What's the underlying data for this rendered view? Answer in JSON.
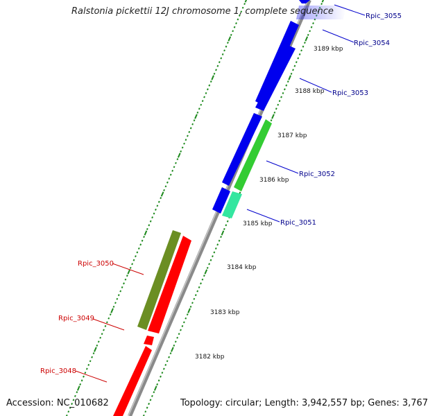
{
  "title": "Ralstonia pickettii 12J chromosome 1, complete sequence",
  "footer": {
    "accession": "Accession: NC_010682",
    "summary": "Topology: circular; Length: 3,942,557 bp; Genes: 3,767"
  },
  "colors": {
    "backbone": "#8a8a8a",
    "tick": "#1e8a1e",
    "forward_gene": "#0000ee",
    "reverse_gene": "#ff0000",
    "forward_label": "#00008b",
    "reverse_label": "#cc0000",
    "cds_green": "#33cc33",
    "cds_olive": "#6b8e23",
    "cds_teal": "#33e6a0"
  },
  "scale_labels": [
    "3182 kbp",
    "3183 kbp",
    "3184 kbp",
    "3185 kbp",
    "3186 kbp",
    "3187 kbp",
    "3188 kbp",
    "3189 kbp"
  ],
  "gene_labels": {
    "forward": [
      "Rpic_3055",
      "Rpic_3054",
      "Rpic_3053",
      "Rpic_3052",
      "Rpic_3051"
    ],
    "reverse": [
      "Rpic_3050",
      "Rpic_3049",
      "Rpic_3048"
    ]
  }
}
